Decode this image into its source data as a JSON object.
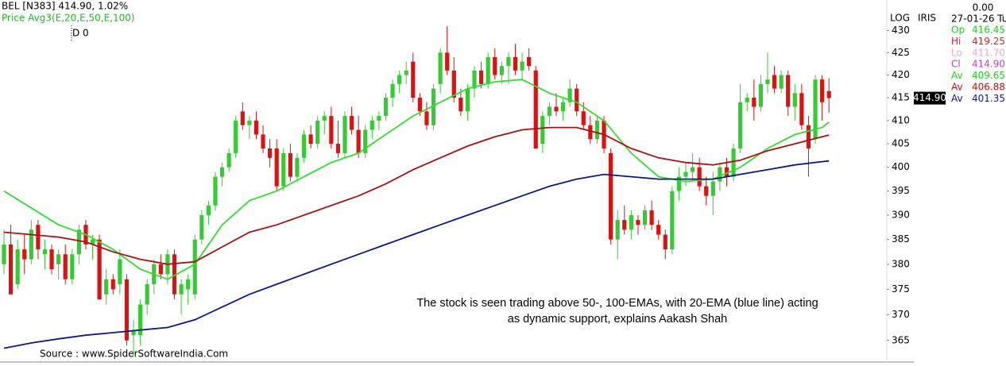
{
  "chart_data": {
    "type": "candlestick",
    "title": "BEL [N383]  414.90,  1.02%",
    "subtitle": "Price  Avg3(E,20,E,50,E,100)",
    "cursor_label": "D 0",
    "scale_label": "LOG",
    "log_scale": true,
    "ylim": [
      361,
      437
    ],
    "yticks": [
      365,
      370,
      375,
      380,
      385,
      390,
      395,
      400,
      405,
      410,
      415,
      420,
      425,
      430
    ],
    "up_color": "#33cc33",
    "down_color": "#dd1111",
    "price_label": "414.90",
    "annotation": [
      "The stock is seen trading above 50-, 100-EMAs, with 20-EMA (blue line) acting",
      "as dynamic support, explains Aakash Shah"
    ],
    "source": "Source : www.SpiderSoftwareIndia.Com",
    "ohlc": [
      [
        380,
        387,
        378,
        384
      ],
      [
        384,
        388,
        374,
        374
      ],
      [
        376,
        385,
        375,
        383
      ],
      [
        383,
        386,
        378,
        381
      ],
      [
        381,
        389,
        380,
        387
      ],
      [
        388,
        389,
        381,
        383
      ],
      [
        382,
        385,
        379,
        383
      ],
      [
        383,
        384,
        378,
        379
      ],
      [
        380,
        383,
        377,
        382
      ],
      [
        382,
        384,
        376,
        377
      ],
      [
        377,
        383,
        376,
        382
      ],
      [
        382,
        388,
        380,
        387
      ],
      [
        388,
        389,
        383,
        384
      ],
      [
        384,
        386,
        381,
        385
      ],
      [
        385,
        386,
        373,
        373
      ],
      [
        374,
        379,
        372,
        377
      ],
      [
        377,
        378,
        374,
        375
      ],
      [
        376,
        383,
        374,
        381
      ],
      [
        377,
        378,
        364,
        365
      ],
      [
        366,
        369,
        362,
        367
      ],
      [
        366,
        373,
        364,
        372
      ],
      [
        372,
        377,
        370,
        376
      ],
      [
        376,
        381,
        374,
        380
      ],
      [
        380,
        382,
        377,
        378
      ],
      [
        378,
        383,
        376,
        382
      ],
      [
        382,
        383,
        373,
        374
      ],
      [
        374,
        377,
        370,
        376
      ],
      [
        375,
        378,
        372,
        377
      ],
      [
        374,
        386,
        373,
        385
      ],
      [
        385,
        391,
        384,
        390
      ],
      [
        390,
        393,
        388,
        392
      ],
      [
        392,
        399,
        391,
        398
      ],
      [
        398,
        401,
        396,
        400
      ],
      [
        400,
        404,
        399,
        403
      ],
      [
        403,
        411,
        402,
        410
      ],
      [
        412,
        414,
        408,
        409
      ],
      [
        409,
        411,
        406,
        410
      ],
      [
        410,
        412,
        406,
        407
      ],
      [
        407,
        409,
        403,
        404
      ],
      [
        404,
        406,
        400,
        402
      ],
      [
        404,
        406,
        395,
        396
      ],
      [
        396,
        404,
        395,
        403
      ],
      [
        403,
        405,
        397,
        398
      ],
      [
        398,
        403,
        397,
        402
      ],
      [
        402,
        408,
        401,
        407
      ],
      [
        407,
        409,
        404,
        405
      ],
      [
        405,
        411,
        404,
        410
      ],
      [
        410,
        412,
        407,
        411
      ],
      [
        411,
        413,
        404,
        405
      ],
      [
        405,
        410,
        402,
        403
      ],
      [
        403,
        412,
        402,
        411
      ],
      [
        411,
        413,
        407,
        408
      ],
      [
        408,
        411,
        402,
        403
      ],
      [
        403,
        409,
        402,
        408
      ],
      [
        408,
        411,
        406,
        410
      ],
      [
        410,
        412,
        408,
        411
      ],
      [
        411,
        416,
        410,
        415
      ],
      [
        415,
        419,
        413,
        418
      ],
      [
        418,
        421,
        416,
        420
      ],
      [
        420,
        423,
        418,
        421
      ],
      [
        423,
        425,
        414,
        415
      ],
      [
        415,
        416,
        411,
        412
      ],
      [
        412,
        414,
        408,
        409
      ],
      [
        409,
        418,
        408,
        417
      ],
      [
        418,
        426,
        416,
        425
      ],
      [
        425,
        431,
        420,
        421
      ],
      [
        421,
        424,
        414,
        415
      ],
      [
        415,
        417,
        411,
        412
      ],
      [
        412,
        418,
        410,
        417
      ],
      [
        417,
        422,
        415,
        421
      ],
      [
        421,
        423,
        417,
        418
      ],
      [
        418,
        425,
        417,
        424
      ],
      [
        424,
        426,
        419,
        420
      ],
      [
        420,
        423,
        418,
        422
      ],
      [
        422,
        425,
        418,
        424
      ],
      [
        424,
        427,
        420,
        421
      ],
      [
        421,
        425,
        419,
        423
      ],
      [
        424,
        426,
        421,
        422
      ],
      [
        421,
        422,
        404,
        404
      ],
      [
        405,
        412,
        403,
        411
      ],
      [
        411,
        414,
        409,
        413
      ],
      [
        413,
        416,
        411,
        412
      ],
      [
        412,
        415,
        410,
        414
      ],
      [
        414,
        419,
        413,
        417
      ],
      [
        417,
        418,
        411,
        412
      ],
      [
        412,
        414,
        408,
        409
      ],
      [
        409,
        411,
        405,
        406
      ],
      [
        406,
        411,
        405,
        410
      ],
      [
        410,
        411,
        403,
        404
      ],
      [
        403,
        404,
        384,
        385
      ],
      [
        385,
        391,
        381,
        389
      ],
      [
        389,
        392,
        386,
        387
      ],
      [
        387,
        391,
        385,
        390
      ],
      [
        389,
        390,
        386,
        388
      ],
      [
        388,
        392,
        387,
        391
      ],
      [
        391,
        393,
        387,
        388
      ],
      [
        388,
        389,
        385,
        386
      ],
      [
        386,
        387,
        381,
        383
      ],
      [
        383,
        396,
        382,
        395
      ],
      [
        395,
        400,
        393,
        398
      ],
      [
        398,
        401,
        396,
        399
      ],
      [
        399,
        403,
        397,
        400
      ],
      [
        400,
        402,
        395,
        396
      ],
      [
        396,
        398,
        392,
        394
      ],
      [
        394,
        399,
        390,
        397
      ],
      [
        397,
        401,
        395,
        400
      ],
      [
        400,
        402,
        396,
        398
      ],
      [
        398,
        405,
        397,
        404
      ],
      [
        404,
        418,
        403,
        414
      ],
      [
        414,
        416,
        412,
        415
      ],
      [
        415,
        419,
        410,
        413
      ],
      [
        413,
        420,
        412,
        418
      ],
      [
        418,
        425,
        416,
        419
      ],
      [
        420,
        422,
        416,
        417
      ],
      [
        417,
        421,
        416,
        420
      ],
      [
        420,
        421,
        411,
        413
      ],
      [
        413,
        418,
        410,
        416
      ],
      [
        416,
        418,
        408,
        409
      ],
      [
        409,
        411,
        398,
        404
      ],
      [
        406,
        420,
        405,
        419
      ],
      [
        419,
        420,
        410,
        414
      ],
      [
        416.45,
        419.25,
        411.7,
        414.9
      ]
    ],
    "x": [
      0,
      4,
      8,
      12,
      16,
      20,
      24,
      28,
      32,
      36,
      40,
      44,
      48,
      52,
      56,
      60,
      64,
      68,
      72,
      76,
      80,
      84,
      88,
      92,
      96,
      100,
      104,
      108,
      112,
      116,
      120,
      121
    ],
    "series": [
      {
        "color": "#33dd33",
        "values": [
          395,
          391.5,
          388,
          386,
          383,
          379,
          377,
          380,
          388,
          393,
          395,
          398,
          401,
          403,
          407,
          411,
          414,
          417,
          418.5,
          419,
          416,
          414,
          410,
          403,
          398,
          397,
          397.5,
          400,
          404,
          407,
          408.5,
          409.65
        ]
      },
      {
        "color": "#aa1111",
        "values": [
          386.5,
          386,
          385.5,
          384.5,
          382.5,
          381,
          380,
          380.5,
          383.5,
          386.5,
          388,
          390,
          392,
          394,
          396.5,
          399.5,
          402,
          404.5,
          406.5,
          408,
          408.5,
          408.5,
          407,
          404,
          402,
          401,
          400.5,
          401.5,
          403.5,
          405,
          406.5,
          406.88
        ]
      },
      {
        "color": "#0a1a8c",
        "values": [
          363.5,
          364.5,
          365.3,
          366,
          366.5,
          367,
          367.5,
          369,
          371.5,
          374,
          376,
          378,
          380,
          382,
          384,
          386,
          388,
          390,
          392,
          394,
          396,
          397.5,
          398.5,
          398,
          397.5,
          397.5,
          397.5,
          398.5,
          399.5,
          400.5,
          401.2,
          401.35
        ]
      }
    ],
    "info_panel": {
      "change": "0.00",
      "date": "27-01-26 Tu",
      "name": "IRIS",
      "rows": [
        {
          "label": "Op",
          "value": "416.45",
          "color": "#22cc22"
        },
        {
          "label": "Hi",
          "value": "419.25",
          "color": "#dd2222"
        },
        {
          "label": "Lo",
          "value": "411.70",
          "color": "#f0a8c8"
        },
        {
          "label": "Cl",
          "value": "414.90",
          "color": "#c040c0"
        },
        {
          "label": "Av",
          "value": "409.65",
          "color": "#22cc22"
        },
        {
          "label": "Av",
          "value": "406.88",
          "color": "#bb1111"
        },
        {
          "label": "Av",
          "value": "401.35",
          "color": "#0a1a8c"
        }
      ]
    }
  }
}
